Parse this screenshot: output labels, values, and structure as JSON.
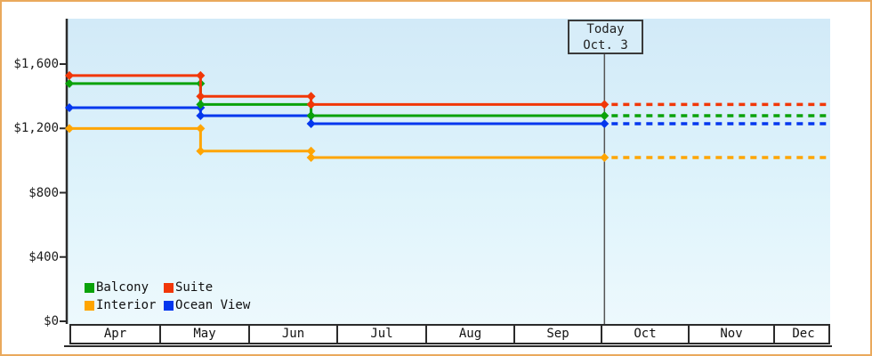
{
  "window": {
    "accent_border_color": "#EAA95C",
    "plot_background_top": "#d2eaf8",
    "plot_background_bottom": "#edf9fd"
  },
  "chart_data": {
    "type": "line",
    "subtype": "step",
    "title": "",
    "xlabel": "",
    "ylabel": "",
    "x_months": [
      "Apr",
      "May",
      "Jun",
      "Jul",
      "Aug",
      "Sep",
      "Oct",
      "Nov",
      "Dec"
    ],
    "ylim": [
      0,
      1600
    ],
    "y_ticks": [
      {
        "value": 0,
        "label": "$0"
      },
      {
        "value": 400,
        "label": "$400"
      },
      {
        "value": 800,
        "label": "$800"
      },
      {
        "value": 1200,
        "label": "$1,200"
      },
      {
        "value": 1600,
        "label": "$1,600"
      }
    ],
    "grid": false,
    "today": {
      "line1": "Today",
      "line2": "Oct. 3",
      "month": "Oct",
      "day": 3
    },
    "dashed_projection_after_today": true,
    "series": [
      {
        "name": "Interior",
        "color": "#FFA502",
        "points": [
          {
            "month": "Apr",
            "day": 1,
            "value": 1199
          },
          {
            "month": "May",
            "day": 16,
            "value": 1059
          },
          {
            "month": "Jun",
            "day": 23,
            "value": 1019
          }
        ]
      },
      {
        "name": "Ocean View",
        "color": "#0437EE",
        "points": [
          {
            "month": "Apr",
            "day": 1,
            "value": 1329
          },
          {
            "month": "May",
            "day": 16,
            "value": 1279
          },
          {
            "month": "Jun",
            "day": 23,
            "value": 1229
          }
        ]
      },
      {
        "name": "Balcony",
        "color": "#0AA20A",
        "points": [
          {
            "month": "Apr",
            "day": 1,
            "value": 1479
          },
          {
            "month": "May",
            "day": 16,
            "value": 1349
          },
          {
            "month": "Jun",
            "day": 23,
            "value": 1279
          }
        ]
      },
      {
        "name": "Suite",
        "color": "#F13708",
        "points": [
          {
            "month": "Apr",
            "day": 1,
            "value": 1529
          },
          {
            "month": "May",
            "day": 16,
            "value": 1399
          },
          {
            "month": "Jun",
            "day": 23,
            "value": 1349
          }
        ]
      }
    ],
    "legend": {
      "position": "bottom-left",
      "rows": [
        [
          "Balcony",
          "Suite"
        ],
        [
          "Interior",
          "Ocean View"
        ]
      ]
    }
  }
}
